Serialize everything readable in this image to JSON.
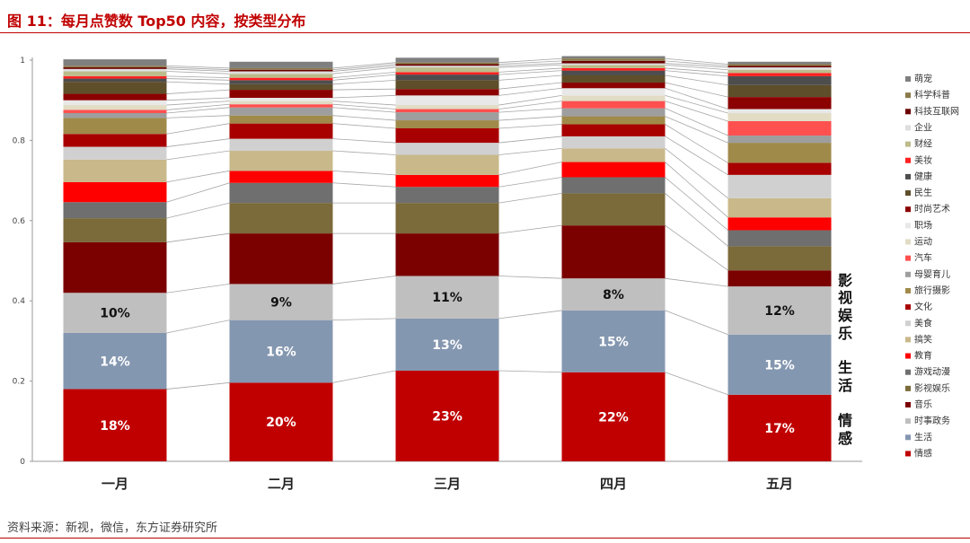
{
  "title": "图 11：每月点赞数 Top50 内容，按类型分布",
  "source": "资料来源：新视，微信，东方证券研究所",
  "side_labels": [
    "影",
    "视",
    "娱",
    "乐",
    "生",
    "活",
    "情",
    "感"
  ],
  "chart_data": {
    "type": "bar",
    "stacked": true,
    "categories": [
      "一月",
      "二月",
      "三月",
      "四月",
      "五月"
    ],
    "ylim": [
      0,
      1
    ],
    "yticks": [
      "0",
      "0.2",
      "0.4",
      "0.6",
      "0.8",
      "1"
    ],
    "legend_position": "right",
    "series": [
      {
        "name": "情感",
        "color": "#c00000",
        "values": [
          0.18,
          0.196,
          0.226,
          0.222,
          0.166
        ],
        "labels": [
          "18%",
          "20%",
          "23%",
          "22%",
          "17%"
        ],
        "label_color": "#ffffff"
      },
      {
        "name": "生活",
        "color": "#8497b0",
        "values": [
          0.14,
          0.156,
          0.13,
          0.154,
          0.15
        ],
        "labels": [
          "14%",
          "16%",
          "13%",
          "15%",
          "15%"
        ],
        "label_color": "#ffffff"
      },
      {
        "name": "时事政务",
        "color": "#bfbfbf",
        "values": [
          0.1,
          0.09,
          0.106,
          0.08,
          0.12
        ],
        "labels": [
          "10%",
          "9%",
          "11%",
          "8%",
          "12%"
        ],
        "label_color": "#111111"
      },
      {
        "name": "音乐",
        "color": "#7b0000",
        "values": [
          0.126,
          0.126,
          0.106,
          0.132,
          0.04
        ]
      },
      {
        "name": "影视娱乐",
        "color": "#7b6a3a",
        "values": [
          0.06,
          0.076,
          0.076,
          0.08,
          0.06
        ]
      },
      {
        "name": "游戏动漫",
        "color": "#6f6f6f",
        "values": [
          0.04,
          0.05,
          0.04,
          0.04,
          0.04
        ]
      },
      {
        "name": "教育",
        "color": "#ff0000",
        "values": [
          0.05,
          0.03,
          0.03,
          0.038,
          0.032
        ]
      },
      {
        "name": "搞笑",
        "color": "#c9b88a",
        "values": [
          0.056,
          0.05,
          0.05,
          0.034,
          0.048
        ]
      },
      {
        "name": "美食",
        "color": "#d0d0d0",
        "values": [
          0.032,
          0.03,
          0.03,
          0.03,
          0.058
        ]
      },
      {
        "name": "文化",
        "color": "#a80000",
        "values": [
          0.032,
          0.038,
          0.036,
          0.03,
          0.03
        ]
      },
      {
        "name": "旅行摄影",
        "color": "#a08a4a",
        "values": [
          0.04,
          0.02,
          0.02,
          0.02,
          0.05
        ]
      },
      {
        "name": "母婴育儿",
        "color": "#9e9e9e",
        "values": [
          0.012,
          0.02,
          0.02,
          0.02,
          0.018
        ]
      },
      {
        "name": "汽车",
        "color": "#ff5050",
        "values": [
          0.008,
          0.008,
          0.008,
          0.018,
          0.036
        ]
      },
      {
        "name": "运动",
        "color": "#e2dcc4",
        "values": [
          0.012,
          0.008,
          0.01,
          0.014,
          0.02
        ]
      },
      {
        "name": "职场",
        "color": "#e8e8e8",
        "values": [
          0.012,
          0.008,
          0.024,
          0.018,
          0.01
        ]
      },
      {
        "name": "时尚艺术",
        "color": "#8b0000",
        "values": [
          0.016,
          0.02,
          0.016,
          0.014,
          0.03
        ]
      },
      {
        "name": "民生",
        "color": "#5e4e2a",
        "values": [
          0.03,
          0.014,
          0.022,
          0.018,
          0.03
        ]
      },
      {
        "name": "健康",
        "color": "#4d4d4d",
        "values": [
          0.008,
          0.01,
          0.014,
          0.012,
          0.022
        ]
      },
      {
        "name": "美妆",
        "color": "#ff2020",
        "values": [
          0.006,
          0.006,
          0.006,
          0.006,
          0.008
        ]
      },
      {
        "name": "财经",
        "color": "#bcbc8c",
        "values": [
          0.012,
          0.01,
          0.012,
          0.008,
          0.008
        ]
      },
      {
        "name": "企业",
        "color": "#dedede",
        "values": [
          0.006,
          0.006,
          0.004,
          0.004,
          0.006
        ]
      },
      {
        "name": "科技互联网",
        "color": "#6b0000",
        "values": [
          0.004,
          0.004,
          0.004,
          0.006,
          0.004
        ]
      },
      {
        "name": "科学科普",
        "color": "#8c7a4a",
        "values": [
          0.004,
          0.004,
          0.004,
          0.006,
          0.004
        ]
      },
      {
        "name": "萌宠",
        "color": "#7f7f7f",
        "values": [
          0.016,
          0.016,
          0.012,
          0.006,
          0.006
        ]
      }
    ]
  }
}
